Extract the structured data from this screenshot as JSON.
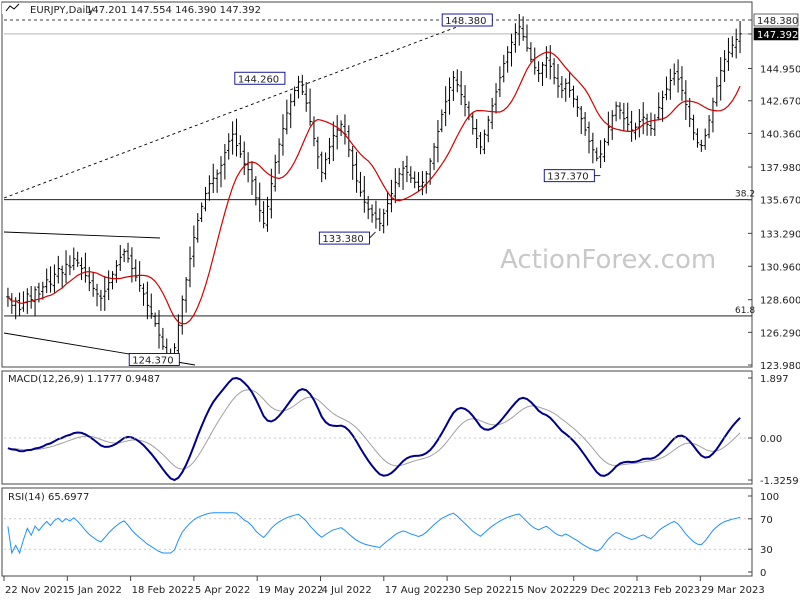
{
  "header": {
    "symbol": "EURJPY,Daily",
    "ohlc": "147.201 147.554 146.390 147.392"
  },
  "watermark": "ActionForex.com",
  "colors": {
    "price": "#000000",
    "sma": "#d40000",
    "macd": "#00008b",
    "signal": "#a0a0a0",
    "rsi": "#1e90ff",
    "label_border": "#00008b",
    "grid": "#c8c8c8"
  },
  "chart_data": [
    {
      "type": "ohlc",
      "panel": "price",
      "yticks": [
        "148.380",
        "147.392",
        "144.950",
        "142.670",
        "140.360",
        "137.980",
        "135.670",
        "133.290",
        "130.960",
        "128.600",
        "126.290",
        "123.980"
      ],
      "ylim": [
        123.98,
        148.38
      ],
      "x_labels": [
        "22 Nov 2021",
        "5 Jan 2022",
        "18 Feb 2022",
        "5 Apr 2022",
        "19 May 2022",
        "4 Jul 2022",
        "17 Aug 2022",
        "30 Sep 2022",
        "15 Nov 2022",
        "29 Dec 2022",
        "13 Feb 2023",
        "29 Mar 2023"
      ],
      "current_price": "147.392",
      "annotations": [
        {
          "text": "148.380",
          "date": "2022-10-21",
          "value": 148.38
        },
        {
          "text": "144.260",
          "date": "2022-06-01",
          "value": 144.26
        },
        {
          "text": "133.380",
          "date": "2022-08-02",
          "value": 133.38
        },
        {
          "text": "137.370",
          "date": "2023-01-03",
          "value": 137.37
        },
        {
          "text": "124.370",
          "date": "2022-03-07",
          "value": 124.37
        }
      ],
      "fib_levels": [
        {
          "label": "38.2",
          "value": 135.67
        },
        {
          "label": "61.8",
          "value": 127.45
        }
      ],
      "close": [
        128.8,
        128.2,
        128.5,
        127.9,
        128.4,
        129.0,
        128.6,
        129.3,
        129.0,
        129.5,
        130.0,
        129.7,
        130.4,
        130.8,
        130.5,
        131.1,
        130.9,
        131.5,
        131.2,
        130.8,
        130.3,
        129.8,
        129.4,
        129.0,
        128.7,
        129.2,
        129.8,
        130.4,
        131.0,
        131.6,
        132.0,
        131.5,
        130.8,
        130.2,
        129.6,
        129.0,
        128.2,
        127.6,
        126.9,
        126.1,
        125.3,
        124.8,
        124.5,
        125.2,
        126.8,
        128.6,
        130.0,
        131.5,
        133.0,
        134.2,
        135.2,
        136.1,
        136.8,
        137.2,
        137.5,
        138.1,
        139.0,
        139.8,
        140.3,
        139.5,
        138.9,
        138.2,
        137.8,
        137.0,
        135.8,
        134.9,
        134.0,
        135.2,
        136.8,
        138.3,
        139.6,
        140.7,
        141.8,
        142.6,
        143.4,
        144.0,
        143.3,
        142.5,
        141.2,
        140.0,
        138.7,
        137.6,
        138.5,
        139.4,
        140.2,
        140.6,
        141.0,
        140.3,
        139.2,
        138.1,
        137.0,
        136.2,
        135.5,
        135.0,
        134.6,
        134.3,
        134.0,
        134.7,
        135.4,
        136.1,
        136.9,
        137.5,
        137.9,
        137.6,
        137.2,
        136.9,
        136.6,
        136.9,
        137.5,
        138.4,
        139.4,
        140.5,
        141.7,
        142.6,
        143.6,
        144.3,
        143.8,
        143.1,
        142.4,
        141.6,
        140.7,
        140.0,
        139.4,
        140.3,
        141.3,
        142.3,
        143.3,
        144.3,
        145.3,
        146.1,
        146.8,
        147.5,
        147.9,
        147.2,
        146.4,
        145.6,
        145.0,
        144.6,
        145.2,
        145.7,
        145.1,
        144.3,
        143.7,
        143.4,
        143.9,
        143.4,
        142.8,
        142.2,
        141.4,
        140.6,
        139.8,
        139.2,
        138.6,
        138.9,
        139.8,
        140.8,
        141.6,
        142.3,
        142.0,
        141.4,
        141.0,
        140.6,
        140.8,
        141.2,
        141.5,
        141.0,
        140.7,
        141.3,
        142.2,
        142.9,
        143.5,
        144.1,
        144.6,
        144.2,
        143.4,
        142.4,
        141.4,
        140.4,
        139.7,
        139.5,
        140.2,
        141.3,
        142.6,
        143.7,
        144.8,
        145.6,
        146.1,
        146.6,
        147.0,
        147.4
      ]
    },
    {
      "type": "line",
      "panel": "macd",
      "title": "MACD(12,26,9) 1.1777 0.9487",
      "yticks": [
        "1.897",
        "0.00",
        "-1.3259"
      ],
      "ylim": [
        -1.3259,
        1.897
      ]
    },
    {
      "type": "line",
      "panel": "rsi",
      "title": "RSI(14) 65.6977",
      "yticks": [
        "100",
        "70",
        "30",
        "0"
      ],
      "ylim": [
        0,
        100
      ]
    }
  ]
}
